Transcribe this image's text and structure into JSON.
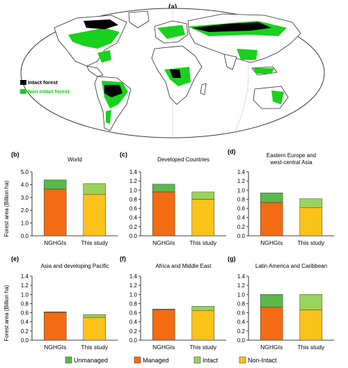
{
  "figure": {
    "panel_a_label": "(a)",
    "map_legend": [
      {
        "label": "Intact forest",
        "color": "#000000",
        "text_color": "#000000"
      },
      {
        "label": "Non intact forest",
        "color": "#19d11e",
        "text_color": "#19c41e"
      }
    ],
    "y_axis_label": "Forest area (Billion ha)",
    "colors": {
      "unmanaged": "#5cb849",
      "managed": "#f36b12",
      "intact": "#9ad35a",
      "non_intact": "#fbc21a",
      "forest_green": "#19d11e",
      "map_land": "#ffffff",
      "map_outline": "#2a2a2a"
    },
    "bottom_legend": [
      {
        "label": "Unmanaged",
        "key": "unmanaged"
      },
      {
        "label": "Managed",
        "key": "managed"
      },
      {
        "label": "Intact",
        "key": "intact"
      },
      {
        "label": "Non-Intact",
        "key": "non_intact"
      }
    ]
  },
  "chart_data": [
    {
      "type": "bar",
      "panel": "(b)",
      "title": "World",
      "categories": [
        "NGHGIs",
        "This study"
      ],
      "ylim": [
        0,
        5
      ],
      "yticks": [
        "0.0",
        "1.0",
        "2.0",
        "3.0",
        "4.0",
        "5.0"
      ],
      "series": [
        {
          "name": "Managed",
          "values": [
            3.65,
            null
          ]
        },
        {
          "name": "Unmanaged",
          "values": [
            0.72,
            null
          ]
        },
        {
          "name": "Non-Intact",
          "values": [
            null,
            3.25
          ]
        },
        {
          "name": "Intact",
          "values": [
            null,
            0.83
          ]
        }
      ]
    },
    {
      "type": "bar",
      "panel": "(c)",
      "title": "Developed Countries",
      "categories": [
        "NGHGIs",
        "This study"
      ],
      "ylim": [
        0,
        1.4
      ],
      "yticks": [
        "0.0",
        "0.2",
        "0.4",
        "0.6",
        "0.8",
        "1.0",
        "1.2",
        "1.4"
      ],
      "series": [
        {
          "name": "Managed",
          "values": [
            0.96,
            null
          ]
        },
        {
          "name": "Unmanaged",
          "values": [
            0.17,
            null
          ]
        },
        {
          "name": "Non-Intact",
          "values": [
            null,
            0.8
          ]
        },
        {
          "name": "Intact",
          "values": [
            null,
            0.16
          ]
        }
      ]
    },
    {
      "type": "bar",
      "panel": "(d)",
      "title": "Eastern Europe and\nwest-central Asia",
      "categories": [
        "NGHGIs",
        "This study"
      ],
      "ylim": [
        0,
        1.4
      ],
      "yticks": [
        "0.0",
        "0.2",
        "0.4",
        "0.6",
        "0.8",
        "1.0",
        "1.2",
        "1.4"
      ],
      "series": [
        {
          "name": "Managed",
          "values": [
            0.73,
            null
          ]
        },
        {
          "name": "Unmanaged",
          "values": [
            0.21,
            null
          ]
        },
        {
          "name": "Non-Intact",
          "values": [
            null,
            0.62
          ]
        },
        {
          "name": "Intact",
          "values": [
            null,
            0.19
          ]
        }
      ]
    },
    {
      "type": "bar",
      "panel": "(e)",
      "title": "Asia and developing Pacific",
      "categories": [
        "NGHGIs",
        "This study"
      ],
      "ylim": [
        0,
        1.4
      ],
      "yticks": [
        "0.0",
        "0.2",
        "0.4",
        "0.6",
        "0.8",
        "1.0",
        "1.2",
        "1.4"
      ],
      "series": [
        {
          "name": "Managed",
          "values": [
            0.61,
            null
          ]
        },
        {
          "name": "Unmanaged",
          "values": [
            0.01,
            null
          ]
        },
        {
          "name": "Non-Intact",
          "values": [
            null,
            0.5
          ]
        },
        {
          "name": "Intact",
          "values": [
            null,
            0.06
          ]
        }
      ]
    },
    {
      "type": "bar",
      "panel": "(f)",
      "title": "Africa and Middle East",
      "categories": [
        "NGHGIs",
        "This study"
      ],
      "ylim": [
        0,
        1.4
      ],
      "yticks": [
        "0.0",
        "0.2",
        "0.4",
        "0.6",
        "0.8",
        "1.0",
        "1.2",
        "1.4"
      ],
      "series": [
        {
          "name": "Managed",
          "values": [
            0.67,
            null
          ]
        },
        {
          "name": "Unmanaged",
          "values": [
            0.01,
            null
          ]
        },
        {
          "name": "Non-Intact",
          "values": [
            null,
            0.65
          ]
        },
        {
          "name": "Intact",
          "values": [
            null,
            0.09
          ]
        }
      ]
    },
    {
      "type": "bar",
      "panel": "(g)",
      "title": "Latin America and Caribbean",
      "categories": [
        "NGHGIs",
        "This study"
      ],
      "ylim": [
        0,
        1.4
      ],
      "yticks": [
        "0.0",
        "0.2",
        "0.4",
        "0.6",
        "0.8",
        "1.0",
        "1.2",
        "1.4"
      ],
      "series": [
        {
          "name": "Managed",
          "values": [
            0.72,
            null
          ]
        },
        {
          "name": "Unmanaged",
          "values": [
            0.28,
            null
          ]
        },
        {
          "name": "Non-Intact",
          "values": [
            null,
            0.66
          ]
        },
        {
          "name": "Intact",
          "values": [
            null,
            0.34
          ]
        }
      ]
    }
  ]
}
